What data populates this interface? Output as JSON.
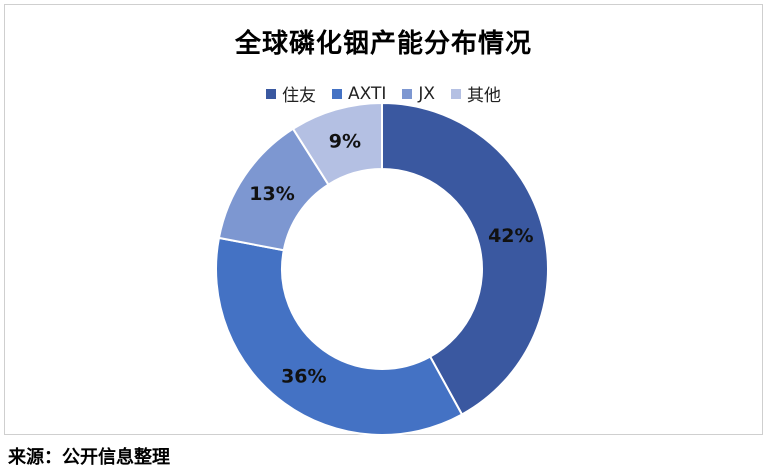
{
  "chart_data": {
    "type": "pie",
    "title": "全球磷化铟产能分布情况",
    "categories": [
      "住友",
      "AXTI",
      "JX",
      "其他"
    ],
    "values": [
      42,
      36,
      13,
      9
    ],
    "labels": [
      "42%",
      "36%",
      "13%",
      "9%"
    ],
    "colors": [
      "#3A58A0",
      "#4472C4",
      "#7D97D1",
      "#B4C0E3"
    ],
    "legend_position": "top"
  },
  "footer": {
    "source": "来源：公开信息整理"
  }
}
